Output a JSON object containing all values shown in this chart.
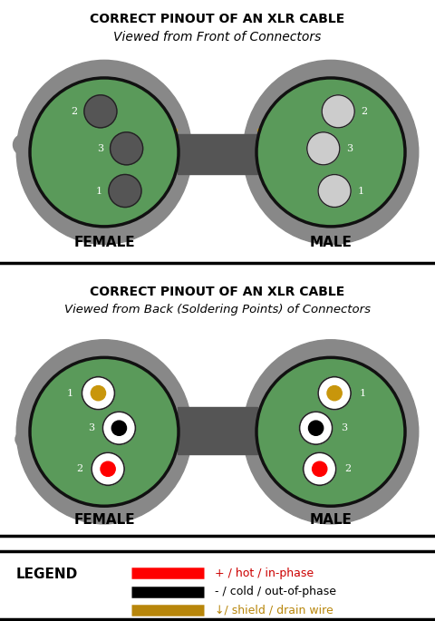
{
  "title": "CORRECT PINOUT OF AN XLR CABLE",
  "subtitle_front": "Viewed from Front of Connectors",
  "subtitle_back": "Viewed from Back (Soldering Points) of Connectors",
  "female_label": "FEMALE",
  "male_label": "MALE",
  "legend_title": "LEGEND",
  "legend_items": [
    {
      "color": "#ff0000",
      "label": "+ / hot / in-phase",
      "label_color": "#cc0000"
    },
    {
      "color": "#000000",
      "label": "- / cold / out-of-phase",
      "label_color": "#000000"
    },
    {
      "color": "#b8860b",
      "label": "↓/ shield / drain wire",
      "label_color": "#b8860b"
    }
  ],
  "bg_color": "#ffffff",
  "connector_outer_color": "#888888",
  "connector_inner_color": "#5a9a5a",
  "connector_border_color": "#111111",
  "pin_dark": "#555555",
  "pin_light": "#cccccc",
  "pin_white": "#ffffff",
  "cable_box_color": "#555555",
  "red_wire": "#ff0000",
  "black_wire": "#000000",
  "gold_wire": "#c8960c",
  "title_fontsize": 10,
  "subtitle_fontsize": 10,
  "label_fontsize": 11,
  "pin_label_fontsize": 8
}
